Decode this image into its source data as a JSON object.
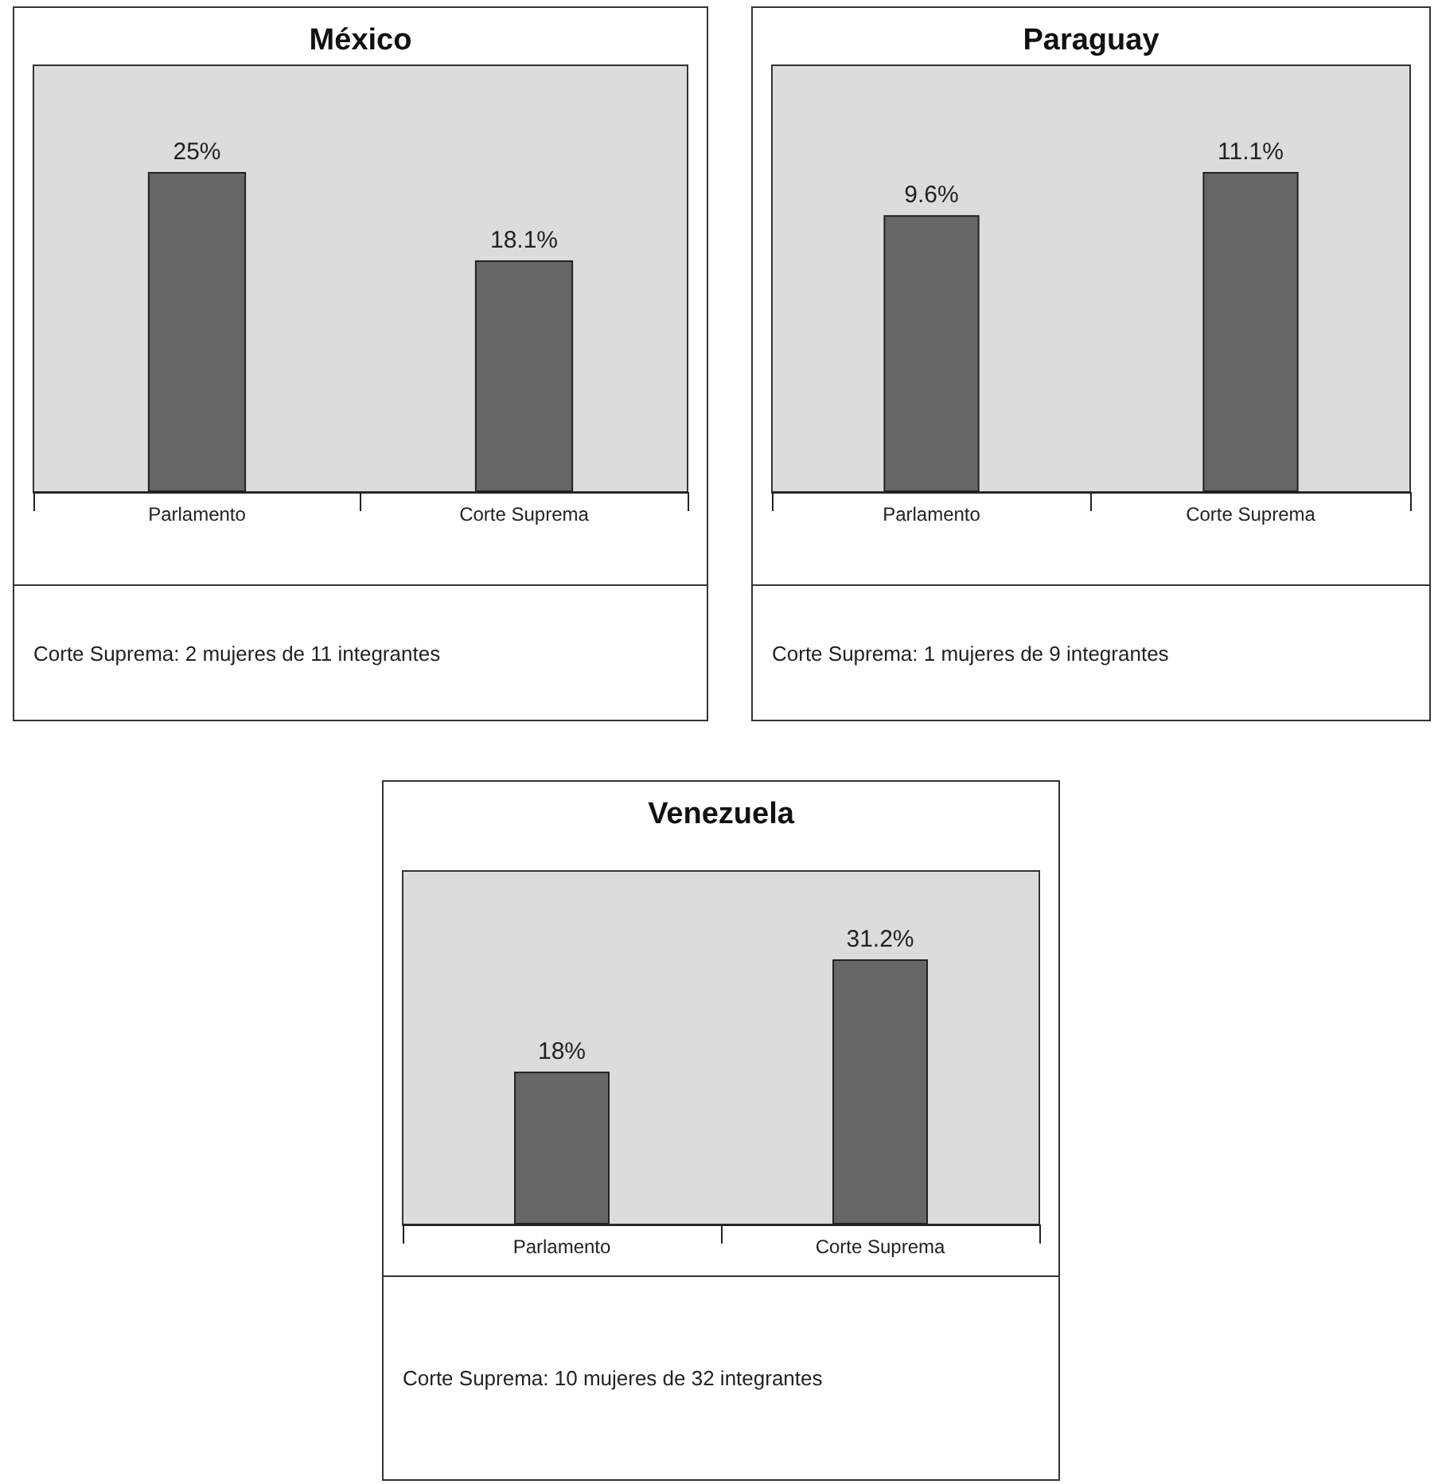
{
  "chart_data": [
    {
      "type": "bar",
      "title": "México",
      "categories": [
        "Parlamento",
        "Corte Suprema"
      ],
      "values": [
        25,
        18.1
      ],
      "value_labels": [
        "25%",
        "18.1%"
      ],
      "color": "#666666",
      "annotations": [
        "Corte Suprema: 2 mujeres de 11 integrantes"
      ]
    },
    {
      "type": "bar",
      "title": "Paraguay",
      "categories": [
        "Parlamento",
        "Corte Suprema"
      ],
      "values": [
        9.6,
        11.1
      ],
      "value_labels": [
        "9.6%",
        "11.1%"
      ],
      "color": "#666666",
      "annotations": [
        "Corte Suprema: 1 mujeres de 9 integrantes"
      ]
    },
    {
      "type": "bar",
      "title": "Venezuela",
      "categories": [
        "Parlamento",
        "Corte Suprema"
      ],
      "values": [
        18,
        31.2
      ],
      "value_labels": [
        "18%",
        "31.2%"
      ],
      "color": "#666666",
      "annotations": [
        "Corte Suprema: 10 mujeres de 32 integrantes"
      ]
    }
  ]
}
